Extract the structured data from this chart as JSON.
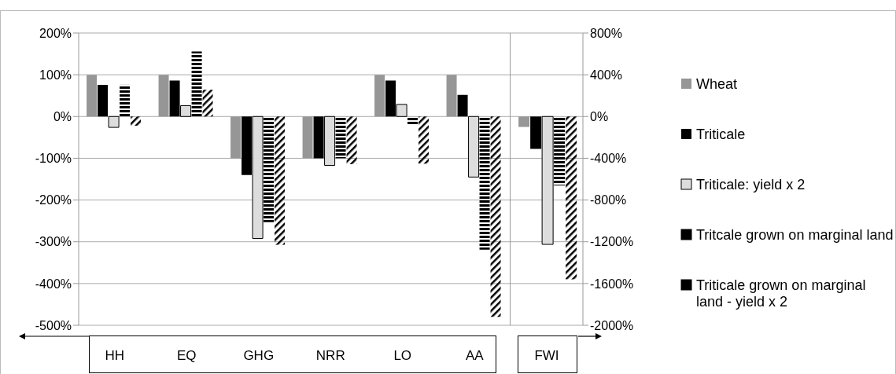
{
  "chart_data": [
    {
      "type": "bar",
      "categories": [
        "HH",
        "EQ",
        "GHG",
        "NRR",
        "LO",
        "AA"
      ],
      "series": [
        {
          "name": "Wheat",
          "color": "#969696",
          "values": [
            100,
            100,
            -100,
            -100,
            100,
            100
          ]
        },
        {
          "name": "Triticale",
          "color": "#000000",
          "values": [
            76,
            86,
            -140,
            -100,
            86,
            52
          ]
        },
        {
          "name": "Triticale: yield x 2",
          "color": "#dddddd",
          "values": [
            -26,
            26,
            -292,
            -117,
            29,
            -145
          ]
        },
        {
          "name": "Tritcale grown on marginal land",
          "color": "#000000",
          "values": [
            76,
            156,
            -253,
            -100,
            -22,
            -319
          ]
        },
        {
          "name": "Triticale grown on marginal land - yield x 2",
          "color": "#000000",
          "values": [
            -22,
            64,
            -307,
            -114,
            -113,
            -480
          ]
        }
      ],
      "ylim": [
        -500,
        200
      ],
      "yticks": [
        {
          "value": -500,
          "label": "-500%"
        },
        {
          "value": -400,
          "label": "-400%"
        },
        {
          "value": -300,
          "label": "-300%"
        },
        {
          "value": -200,
          "label": "-200%"
        },
        {
          "value": -100,
          "label": "-100%"
        },
        {
          "value": 0,
          "label": "0%"
        },
        {
          "value": 100,
          "label": "100%"
        },
        {
          "value": 200,
          "label": "200%"
        }
      ],
      "grid": "y",
      "legend": "right"
    },
    {
      "type": "bar",
      "categories": [
        "FWI"
      ],
      "series": [
        {
          "color": "#969696",
          "values": [
            -100
          ],
          "axis": "y2"
        },
        {
          "color": "#000000",
          "values": [
            -310
          ],
          "axis": "y2"
        },
        {
          "color": "#dddddd",
          "values": [
            -1225
          ],
          "axis": "y2"
        },
        {
          "color": "#000000",
          "values": [
            -660
          ],
          "axis": "y2"
        },
        {
          "color": "#000000",
          "values": [
            -1560
          ],
          "axis": "y2"
        }
      ],
      "y2lim": [
        -2000,
        800
      ],
      "y2ticks": [
        {
          "value": -2000,
          "label": "-2000%"
        },
        {
          "value": -1600,
          "label": "-1600%"
        },
        {
          "value": -1200,
          "label": "-1200%"
        },
        {
          "value": -800,
          "label": "-800%"
        },
        {
          "value": -400,
          "label": "-400%"
        },
        {
          "value": 0,
          "label": "0%"
        },
        {
          "value": 400,
          "label": "400%"
        },
        {
          "value": 800,
          "label": "800%"
        }
      ],
      "grid": "y"
    }
  ]
}
